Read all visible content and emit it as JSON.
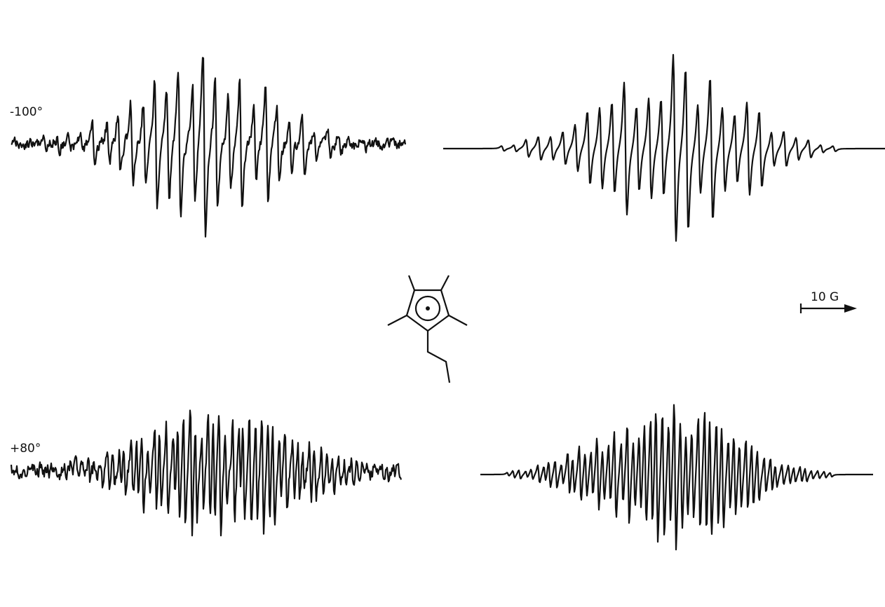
{
  "panels": [
    {
      "label": "-100°"
    },
    {
      "label": "+80°"
    }
  ],
  "scale_bar": {
    "label": "10 G"
  }
}
